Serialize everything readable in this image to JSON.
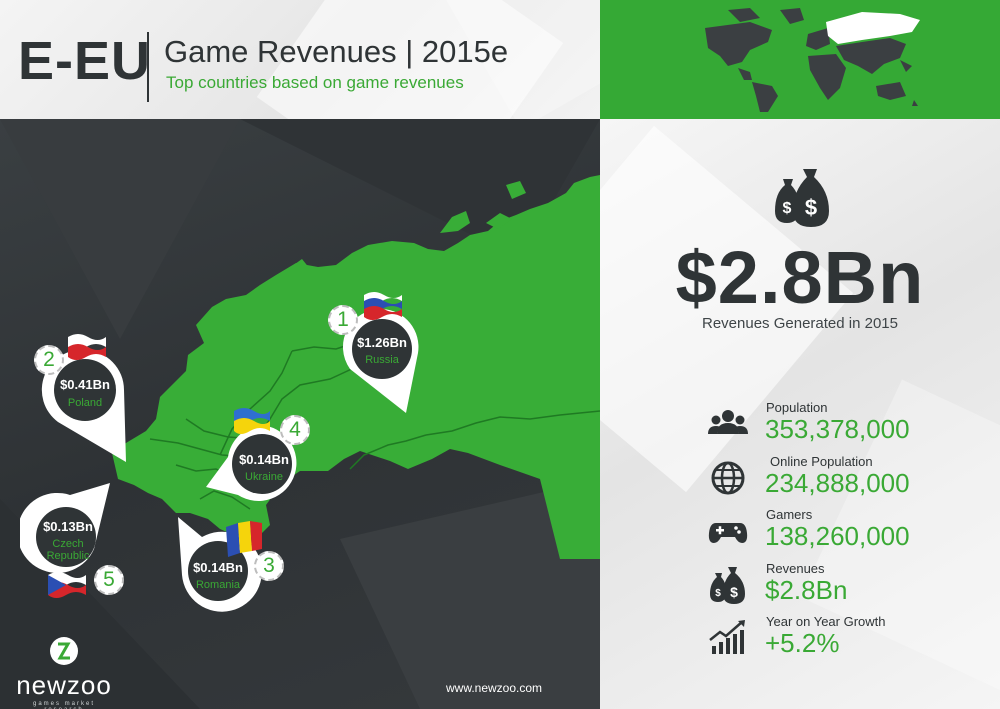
{
  "header": {
    "region_code": "E-EU",
    "title": "Game Revenues | 2015e",
    "subtitle": "Top countries based on game revenues"
  },
  "map": {
    "colors": {
      "land": "#38ad37",
      "border": "#1f7a23",
      "panel": "#33373a"
    },
    "pins": [
      {
        "rank": "1",
        "value": "$1.26Bn",
        "country": "Russia",
        "flag": "russia-flag"
      },
      {
        "rank": "2",
        "value": "$0.41Bn",
        "country": "Poland",
        "flag": "poland-flag"
      },
      {
        "rank": "3",
        "value": "$0.14Bn",
        "country": "Romania",
        "flag": "romania-flag"
      },
      {
        "rank": "4",
        "value": "$0.14Bn",
        "country": "Ukraine",
        "flag": "ukraine-flag"
      },
      {
        "rank": "5",
        "value": "$0.13Bn",
        "country": "Czech Republic",
        "country_line1": "Czech",
        "country_line2": "Republic",
        "flag": "czech-flag"
      }
    ]
  },
  "brand": {
    "name": "newzoo",
    "tagline": "games market research",
    "website": "www.newzoo.com"
  },
  "summary": {
    "total_revenue": "$2.8Bn",
    "total_label": "Revenues Generated in 2015",
    "icon": "money-bags-icon"
  },
  "stats": [
    {
      "label": "Population",
      "value": "353,378,000",
      "icon": "people-icon"
    },
    {
      "label": "Online Population",
      "value": "234,888,000",
      "icon": "globe-icon"
    },
    {
      "label": "Gamers",
      "value": "138,260,000",
      "icon": "gamepad-icon"
    },
    {
      "label": "Revenues",
      "value": "$2.8Bn",
      "icon": "money-bags-icon"
    },
    {
      "label": "Year on Year Growth",
      "value": "+5.2%",
      "icon": "growth-chart-icon"
    }
  ],
  "colors": {
    "accent": "#3aa935",
    "dark": "#2f3436"
  }
}
